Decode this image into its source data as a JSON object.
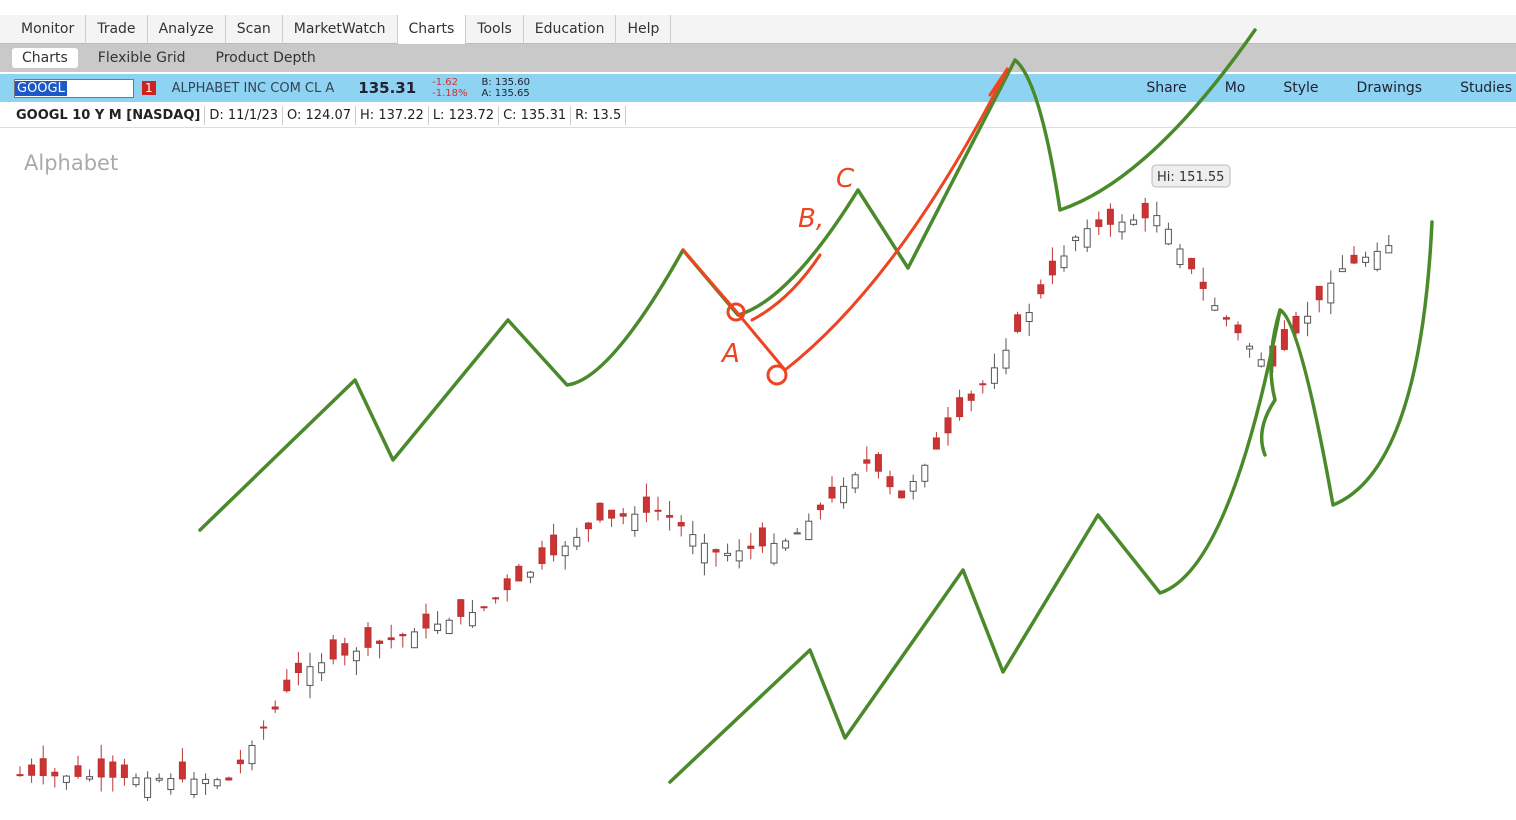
{
  "menu": [
    "Monitor",
    "Trade",
    "Analyze",
    "Scan",
    "MarketWatch",
    "Charts",
    "Tools",
    "Education",
    "Help"
  ],
  "subtabs": [
    "Charts",
    "Flexible Grid",
    "Product Depth"
  ],
  "symbol_bar": {
    "symbol": "GOOGL",
    "alert": "1",
    "description": "ALPHABET INC COM CL A",
    "last": "135.31",
    "change": "-1.62",
    "change_pct": "-1.18%",
    "bid": "B: 135.60",
    "ask": "A: 135.65",
    "tools": [
      "Share",
      "Mo",
      "Style",
      "Drawings",
      "Studies"
    ]
  },
  "info": {
    "title": "GOOGL 10 Y M [NASDAQ]",
    "fields": [
      "D: 11/1/23",
      "O: 124.07",
      "H: 137.22",
      "L: 123.72",
      "C: 135.31",
      "R: 13.5"
    ]
  },
  "chart": {
    "watermark": "Alphabet",
    "high_label": "Hi: 151.55",
    "annotations": [
      "A",
      "B,",
      "C"
    ]
  }
}
